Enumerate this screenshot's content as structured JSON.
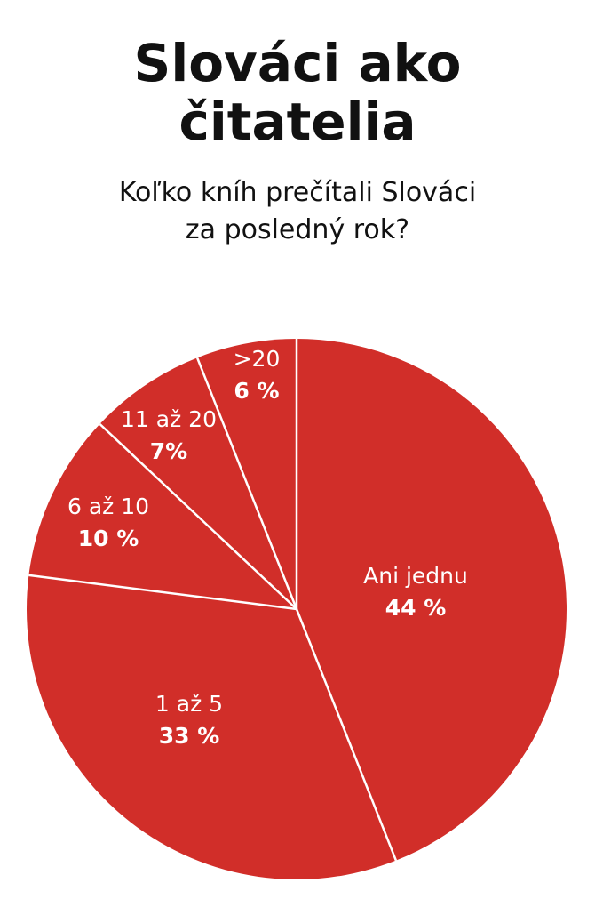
{
  "header": {
    "title_line1": "Slováci ako",
    "title_line2": "čitatelia",
    "subtitle_line1": "Koľko kníh prečítali Slováci",
    "subtitle_line2": "za posledný rok?"
  },
  "chart_data": {
    "type": "pie",
    "colors": {
      "slice": "#d12e29",
      "separator": "#ffffff",
      "text": "#ffffff"
    },
    "slices": [
      {
        "label": "Ani jednu",
        "value": 44,
        "value_label": "44 %"
      },
      {
        "label": "1 až 5",
        "value": 33,
        "value_label": "33 %"
      },
      {
        "label": "6 až 10",
        "value": 10,
        "value_label": "10 %"
      },
      {
        "label": "11 až 20",
        "value": 7,
        "value_label": "7%"
      },
      {
        "label": ">20",
        "value": 6,
        "value_label": "6 %"
      }
    ]
  }
}
